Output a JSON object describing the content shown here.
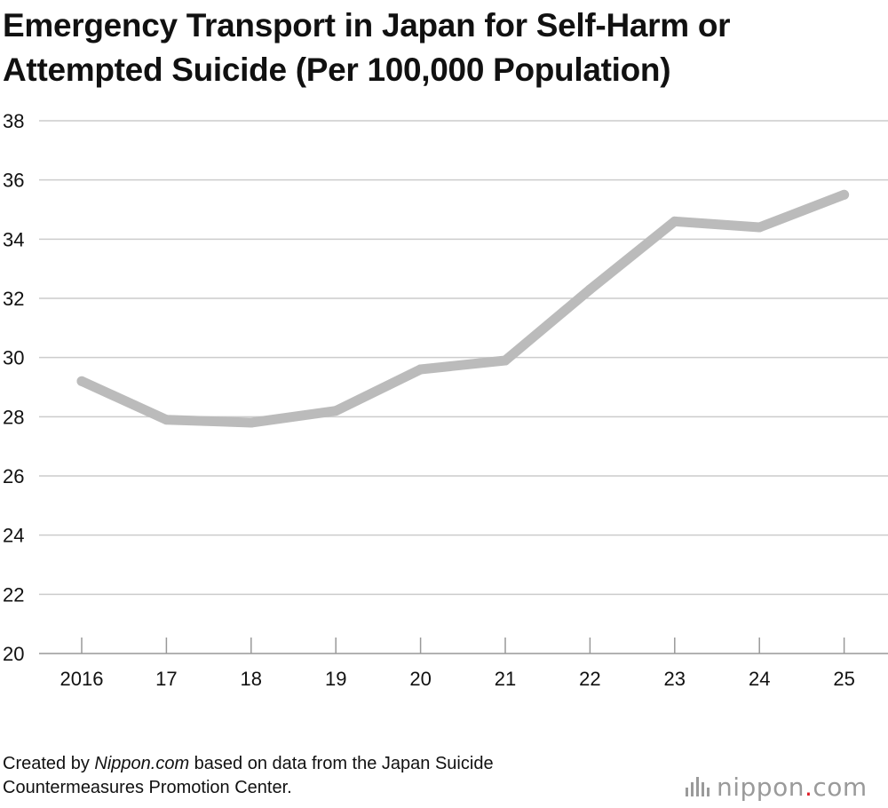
{
  "title": "Emergency Transport in Japan for Self-Harm or Attempted Suicide (Per 100,000 Population)",
  "chart_data": {
    "type": "line",
    "title": "Emergency Transport in Japan for Self-Harm or Attempted Suicide (Per 100,000 Population)",
    "categories": [
      "2016",
      "17",
      "18",
      "19",
      "20",
      "21",
      "22",
      "23",
      "24",
      "25"
    ],
    "series": [
      {
        "values": [
          29.2,
          27.9,
          27.8,
          28.2,
          29.6,
          29.9,
          32.3,
          34.6,
          34.4,
          35.5
        ]
      }
    ],
    "ylim": [
      20,
      38
    ],
    "yticks": [
      20,
      22,
      24,
      26,
      28,
      30,
      32,
      34,
      36,
      38
    ],
    "grid": true,
    "line_color": "#bbbbbb",
    "grid_color": "#cccccc",
    "axis_color": "#999999"
  },
  "footer": {
    "prefix": "Created by ",
    "source_name": "Nippon.com",
    "suffix": " based on data from the Japan Suicide",
    "line2": "Countermeasures Promotion Center."
  },
  "brand": {
    "name": "nippon",
    "dot": ".",
    "tld": "com",
    "icon": "nippon-bars-logo-icon",
    "accent_color": "#e0202a"
  }
}
